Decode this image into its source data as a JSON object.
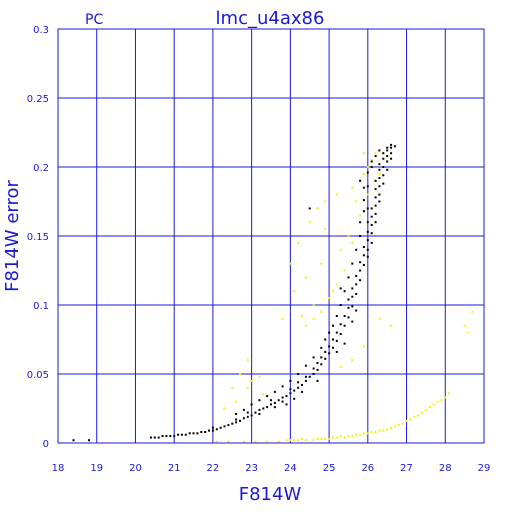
{
  "chart_data": {
    "type": "scatter",
    "title": "lmc_u4ax86",
    "corner_label": "PC",
    "xlabel": "F814W",
    "ylabel": "F814W error",
    "xlim": [
      18,
      29
    ],
    "ylim": [
      0,
      0.3
    ],
    "x_ticks": [
      "18",
      "19",
      "20",
      "21",
      "22",
      "23",
      "24",
      "25",
      "26",
      "27",
      "28",
      "29"
    ],
    "y_ticks": [
      "0",
      "0.05",
      "0.1",
      "0.15",
      "0.2",
      "0.25",
      "0.3"
    ],
    "grid": true,
    "colors": {
      "axis": "#1a1ad6",
      "grid": "#1a1ad6",
      "series_a": "#000000",
      "series_b": "#f2f200"
    },
    "series": [
      {
        "color": "#000000",
        "points": [
          [
            18.4,
            0.002
          ],
          [
            18.8,
            0.002
          ],
          [
            20.4,
            0.004
          ],
          [
            20.5,
            0.004
          ],
          [
            20.6,
            0.004
          ],
          [
            20.7,
            0.005
          ],
          [
            20.8,
            0.005
          ],
          [
            20.9,
            0.005
          ],
          [
            21.0,
            0.005
          ],
          [
            21.1,
            0.006
          ],
          [
            21.2,
            0.006
          ],
          [
            21.3,
            0.006
          ],
          [
            21.4,
            0.007
          ],
          [
            21.5,
            0.007
          ],
          [
            21.6,
            0.007
          ],
          [
            21.7,
            0.008
          ],
          [
            21.8,
            0.008
          ],
          [
            21.9,
            0.009
          ],
          [
            22.0,
            0.009
          ],
          [
            22.0,
            0.011
          ],
          [
            22.1,
            0.01
          ],
          [
            22.2,
            0.011
          ],
          [
            22.3,
            0.012
          ],
          [
            22.4,
            0.013
          ],
          [
            22.5,
            0.014
          ],
          [
            22.6,
            0.015
          ],
          [
            22.6,
            0.017
          ],
          [
            22.7,
            0.016
          ],
          [
            22.8,
            0.018
          ],
          [
            22.9,
            0.019
          ],
          [
            22.9,
            0.022
          ],
          [
            23.0,
            0.02
          ],
          [
            23.1,
            0.022
          ],
          [
            23.2,
            0.024
          ],
          [
            23.2,
            0.021
          ],
          [
            23.3,
            0.025
          ],
          [
            23.4,
            0.026
          ],
          [
            23.5,
            0.028
          ],
          [
            23.5,
            0.031
          ],
          [
            23.6,
            0.029
          ],
          [
            23.7,
            0.031
          ],
          [
            23.8,
            0.033
          ],
          [
            23.8,
            0.03
          ],
          [
            23.9,
            0.034
          ],
          [
            24.0,
            0.036
          ],
          [
            24.0,
            0.039
          ],
          [
            24.1,
            0.038
          ],
          [
            24.2,
            0.04
          ],
          [
            24.2,
            0.044
          ],
          [
            24.3,
            0.042
          ],
          [
            24.4,
            0.045
          ],
          [
            24.4,
            0.048
          ],
          [
            24.5,
            0.048
          ],
          [
            24.6,
            0.05
          ],
          [
            24.6,
            0.054
          ],
          [
            24.7,
            0.053
          ],
          [
            24.7,
            0.058
          ],
          [
            24.8,
            0.057
          ],
          [
            24.8,
            0.062
          ],
          [
            24.9,
            0.061
          ],
          [
            24.9,
            0.066
          ],
          [
            25.0,
            0.065
          ],
          [
            25.0,
            0.07
          ],
          [
            25.1,
            0.069
          ],
          [
            25.1,
            0.075
          ],
          [
            25.2,
            0.074
          ],
          [
            25.2,
            0.08
          ],
          [
            25.3,
            0.079
          ],
          [
            25.3,
            0.086
          ],
          [
            25.4,
            0.085
          ],
          [
            25.4,
            0.092
          ],
          [
            25.5,
            0.091
          ],
          [
            25.5,
            0.098
          ],
          [
            25.5,
            0.104
          ],
          [
            25.6,
            0.099
          ],
          [
            25.6,
            0.106
          ],
          [
            25.6,
            0.112
          ],
          [
            25.7,
            0.108
          ],
          [
            25.7,
            0.115
          ],
          [
            25.7,
            0.121
          ],
          [
            25.8,
            0.118
          ],
          [
            25.8,
            0.125
          ],
          [
            25.8,
            0.131
          ],
          [
            25.9,
            0.129
          ],
          [
            25.9,
            0.136
          ],
          [
            25.9,
            0.142
          ],
          [
            26.0,
            0.14
          ],
          [
            26.0,
            0.147
          ],
          [
            26.0,
            0.153
          ],
          [
            26.0,
            0.16
          ],
          [
            26.1,
            0.152
          ],
          [
            26.1,
            0.158
          ],
          [
            26.1,
            0.164
          ],
          [
            26.1,
            0.17
          ],
          [
            26.2,
            0.166
          ],
          [
            26.2,
            0.172
          ],
          [
            26.2,
            0.178
          ],
          [
            26.2,
            0.184
          ],
          [
            26.3,
            0.18
          ],
          [
            26.3,
            0.186
          ],
          [
            26.3,
            0.192
          ],
          [
            26.3,
            0.198
          ],
          [
            26.4,
            0.194
          ],
          [
            26.4,
            0.2
          ],
          [
            26.4,
            0.206
          ],
          [
            26.4,
            0.21
          ],
          [
            26.5,
            0.204
          ],
          [
            26.5,
            0.208
          ],
          [
            26.5,
            0.212
          ],
          [
            26.5,
            0.214
          ],
          [
            26.6,
            0.21
          ],
          [
            26.6,
            0.214
          ],
          [
            26.6,
            0.216
          ],
          [
            26.7,
            0.215
          ],
          [
            26.3,
            0.212
          ],
          [
            26.2,
            0.208
          ],
          [
            26.1,
            0.204
          ],
          [
            26.0,
            0.196
          ],
          [
            26.0,
            0.186
          ],
          [
            25.9,
            0.176
          ],
          [
            25.9,
            0.168
          ],
          [
            25.8,
            0.16
          ],
          [
            25.8,
            0.15
          ],
          [
            25.7,
            0.14
          ],
          [
            25.6,
            0.13
          ],
          [
            25.5,
            0.12
          ],
          [
            25.4,
            0.11
          ],
          [
            25.3,
            0.1
          ],
          [
            25.2,
            0.092
          ],
          [
            25.1,
            0.085
          ],
          [
            25.0,
            0.08
          ],
          [
            24.9,
            0.075
          ],
          [
            24.8,
            0.069
          ],
          [
            24.6,
            0.062
          ],
          [
            24.4,
            0.056
          ],
          [
            24.2,
            0.05
          ],
          [
            24.0,
            0.045
          ],
          [
            23.8,
            0.041
          ],
          [
            23.6,
            0.037
          ],
          [
            23.4,
            0.034
          ],
          [
            23.2,
            0.031
          ],
          [
            23.0,
            0.028
          ],
          [
            22.8,
            0.024
          ],
          [
            22.6,
            0.021
          ],
          [
            24.5,
            0.17
          ],
          [
            25.8,
            0.19
          ],
          [
            26.1,
            0.2
          ],
          [
            26.3,
            0.175
          ],
          [
            26.0,
            0.17
          ],
          [
            26.2,
            0.16
          ],
          [
            25.9,
            0.185
          ],
          [
            24.1,
            0.032
          ],
          [
            23.9,
            0.028
          ],
          [
            23.6,
            0.026
          ],
          [
            24.3,
            0.037
          ],
          [
            24.7,
            0.045
          ],
          [
            25.2,
            0.066
          ],
          [
            25.4,
            0.072
          ],
          [
            25.6,
            0.088
          ],
          [
            25.3,
            0.112
          ],
          [
            25.7,
            0.096
          ],
          [
            26.0,
            0.135
          ],
          [
            26.1,
            0.145
          ],
          [
            26.2,
            0.19
          ],
          [
            26.4,
            0.188
          ],
          [
            26.5,
            0.198
          ],
          [
            26.6,
            0.206
          ],
          [
            26.3,
            0.202
          ]
        ]
      },
      {
        "color": "#f2f200",
        "points": [
          [
            22.1,
            0.001
          ],
          [
            22.4,
            0.001
          ],
          [
            22.8,
            0.001
          ],
          [
            23.1,
            0.001
          ],
          [
            23.4,
            0.001
          ],
          [
            23.7,
            0.001
          ],
          [
            24.0,
            0.002
          ],
          [
            24.2,
            0.002
          ],
          [
            24.4,
            0.002
          ],
          [
            24.6,
            0.002
          ],
          [
            24.8,
            0.003
          ],
          [
            25.0,
            0.003
          ],
          [
            25.2,
            0.004
          ],
          [
            25.4,
            0.004
          ],
          [
            25.6,
            0.005
          ],
          [
            25.8,
            0.006
          ],
          [
            26.0,
            0.007
          ],
          [
            26.2,
            0.008
          ],
          [
            26.4,
            0.009
          ],
          [
            26.6,
            0.011
          ],
          [
            26.8,
            0.013
          ],
          [
            27.0,
            0.016
          ],
          [
            27.2,
            0.019
          ],
          [
            27.4,
            0.022
          ],
          [
            27.6,
            0.026
          ],
          [
            27.8,
            0.03
          ],
          [
            28.0,
            0.033
          ],
          [
            28.1,
            0.036
          ],
          [
            24.1,
            0.002
          ],
          [
            24.3,
            0.003
          ],
          [
            24.7,
            0.003
          ],
          [
            25.1,
            0.004
          ],
          [
            25.5,
            0.005
          ],
          [
            25.9,
            0.007
          ],
          [
            26.3,
            0.009
          ],
          [
            26.7,
            0.012
          ],
          [
            27.1,
            0.017
          ],
          [
            27.5,
            0.024
          ],
          [
            27.9,
            0.031
          ],
          [
            23.9,
            0.002
          ],
          [
            24.9,
            0.003
          ],
          [
            25.3,
            0.005
          ],
          [
            25.7,
            0.006
          ],
          [
            26.1,
            0.008
          ],
          [
            26.5,
            0.01
          ],
          [
            26.9,
            0.014
          ],
          [
            27.3,
            0.02
          ],
          [
            27.7,
            0.028
          ],
          [
            28.6,
            0.08
          ],
          [
            28.7,
            0.095
          ],
          [
            28.5,
            0.085
          ],
          [
            22.5,
            0.04
          ],
          [
            22.7,
            0.05
          ],
          [
            23.0,
            0.045
          ],
          [
            22.9,
            0.06
          ],
          [
            23.3,
            0.035
          ],
          [
            24.2,
            0.145
          ],
          [
            24.4,
            0.12
          ],
          [
            24.6,
            0.1
          ],
          [
            24.8,
            0.13
          ],
          [
            24.5,
            0.16
          ],
          [
            24.3,
            0.092
          ],
          [
            24.9,
            0.155
          ],
          [
            25.1,
            0.11
          ],
          [
            25.3,
            0.14
          ],
          [
            25.5,
            0.15
          ],
          [
            25.7,
            0.175
          ],
          [
            25.9,
            0.195
          ],
          [
            26.0,
            0.2
          ],
          [
            26.1,
            0.205
          ],
          [
            26.2,
            0.21
          ],
          [
            26.4,
            0.21
          ],
          [
            26.5,
            0.207
          ],
          [
            26.3,
            0.195
          ],
          [
            26.0,
            0.18
          ],
          [
            25.8,
            0.165
          ],
          [
            25.6,
            0.145
          ],
          [
            25.4,
            0.125
          ],
          [
            25.2,
            0.115
          ],
          [
            25.0,
            0.105
          ],
          [
            24.8,
            0.095
          ],
          [
            24.6,
            0.09
          ],
          [
            24.4,
            0.085
          ],
          [
            26.6,
            0.085
          ],
          [
            26.3,
            0.09
          ],
          [
            25.9,
            0.07
          ],
          [
            25.6,
            0.06
          ],
          [
            25.3,
            0.055
          ],
          [
            24.1,
            0.11
          ],
          [
            24.0,
            0.13
          ],
          [
            23.8,
            0.09
          ],
          [
            22.3,
            0.025
          ],
          [
            22.6,
            0.03
          ],
          [
            22.9,
            0.04
          ],
          [
            23.2,
            0.048
          ],
          [
            24.7,
            0.17
          ],
          [
            24.9,
            0.175
          ],
          [
            25.2,
            0.18
          ],
          [
            25.6,
            0.185
          ],
          [
            25.9,
            0.21
          ],
          [
            26.2,
            0.19
          ]
        ]
      }
    ]
  }
}
